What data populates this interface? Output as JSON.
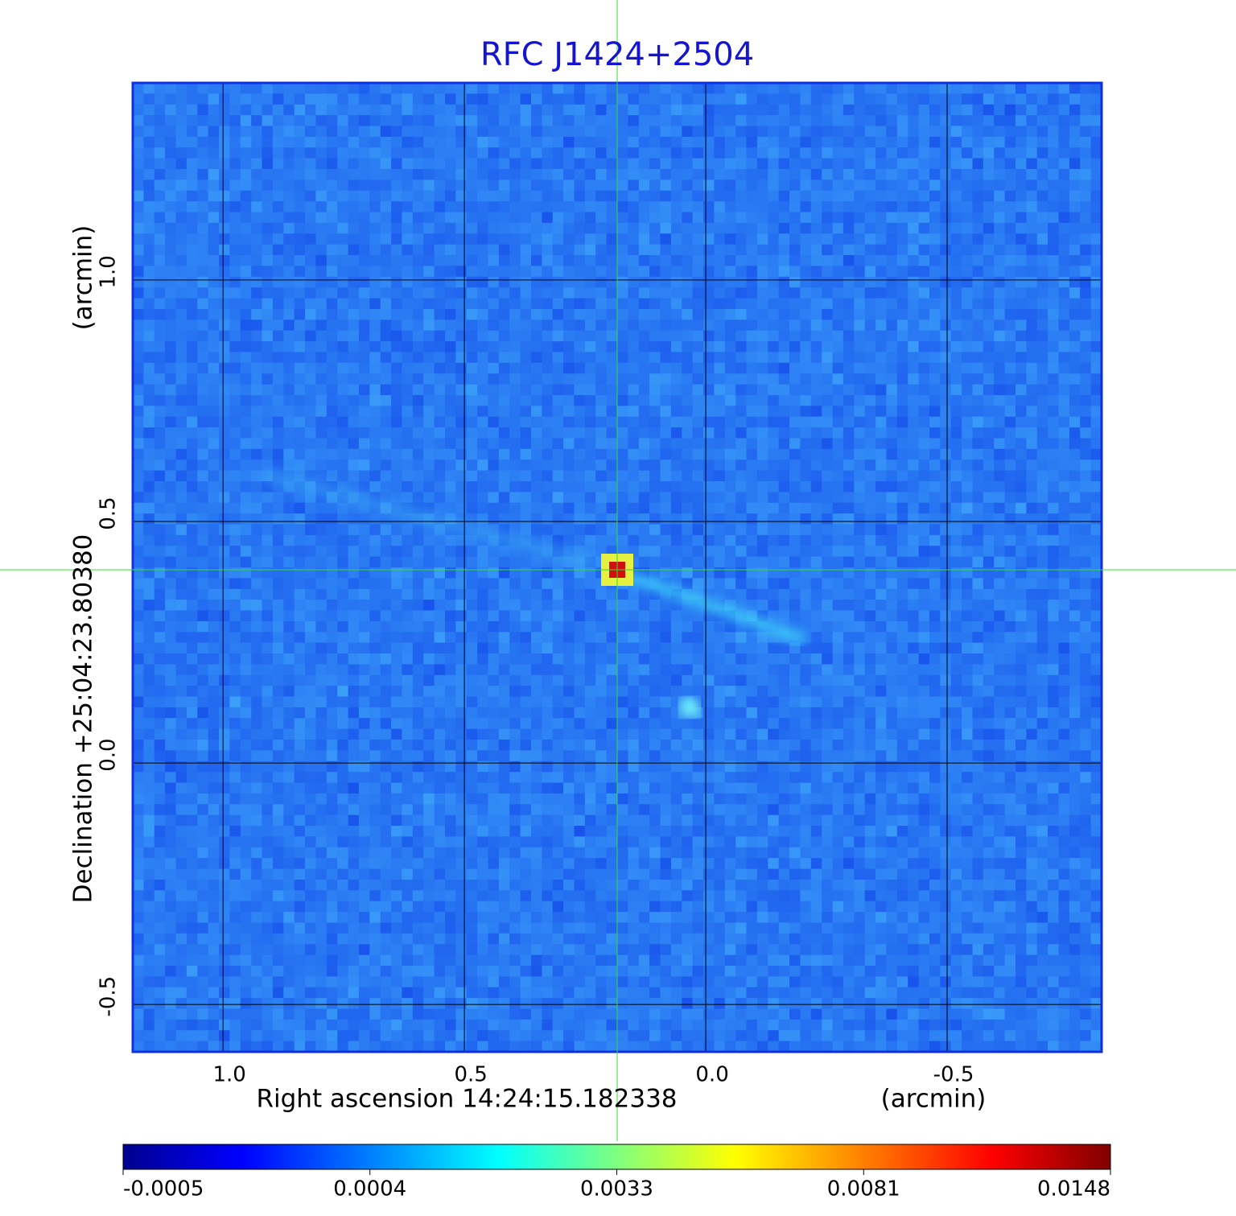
{
  "chart_data": {
    "type": "image",
    "title": "RFC J1424+2504",
    "xlabel": "Right ascension  14:24:15.182338",
    "xunit": "(arcmin)",
    "ylabel": "Declination  +25:04:23.80380",
    "yunit": "(arcmin)",
    "xlim": [
      1.187,
      -0.82
    ],
    "ylim": [
      -0.598,
      1.408
    ],
    "xticks": [
      {
        "value": 1,
        "label": "1.0"
      },
      0.5,
      {
        "value": 0,
        "label": "0.0"
      },
      -0.5
    ],
    "yticks": [
      {
        "value": 1,
        "label": "1.0"
      },
      0.5,
      {
        "value": 0,
        "label": "0.0"
      },
      -0.5
    ],
    "grid": true,
    "colorbar": {
      "ticks": [
        -0.0005,
        0.0004,
        0.0033,
        0.0081,
        0.0148
      ]
    }
  }
}
